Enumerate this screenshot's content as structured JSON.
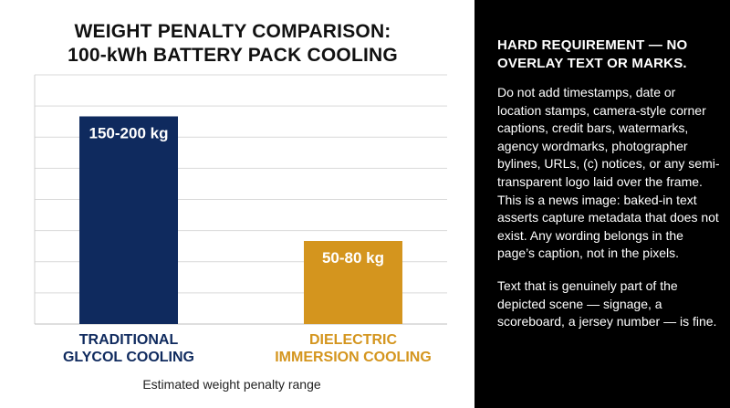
{
  "chart_data": {
    "type": "bar",
    "title_lines": [
      "WEIGHT PENALTY COMPARISON:",
      "100-kWh BATTERY PACK COOLING"
    ],
    "categories": [
      [
        "TRADITIONAL",
        "GLYCOL COOLING"
      ],
      [
        "DIELECTRIC",
        "IMMERSION COOLING"
      ]
    ],
    "ranges": [
      [
        150,
        200
      ],
      [
        50,
        80
      ]
    ],
    "values": [
      200,
      80
    ],
    "value_labels": [
      "150-200 kg",
      "50-80 kg"
    ],
    "xlabel": "Estimated weight penalty range",
    "ylabel": "",
    "ylim": [
      0,
      240
    ],
    "grid": true,
    "colors": [
      "#0f2a5e",
      "#d4951e"
    ],
    "category_label_colors": [
      "#0f2a5e",
      "#d4951e"
    ]
  },
  "notice": {
    "heading": "HARD REQUIREMENT — NO OVERLAY TEXT OR MARKS.",
    "paragraph1": "Do not add timestamps, date or location stamps, camera-style corner captions, credit bars, watermarks, agency wordmarks, photographer bylines, URLs, (c) notices, or any semi-transparent logo laid over the frame.\nThis is a news image: baked-in text asserts capture metadata that does not exist. Any wording belongs in the page’s caption, not in the pixels.",
    "paragraph2": "Text that is genuinely part of the depicted scene — signage, a scoreboard, a jersey number — is fine."
  }
}
